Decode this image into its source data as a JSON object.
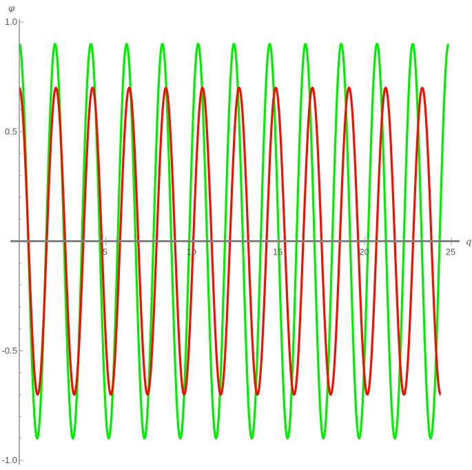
{
  "chart_data": {
    "type": "line",
    "xlabel": "q",
    "ylabel": "φ",
    "xlim": [
      0,
      25
    ],
    "ylim": [
      -1.0,
      1.0
    ],
    "x_ticks": [
      5,
      10,
      15,
      20,
      25
    ],
    "x_tick_labels": [
      "5",
      "10",
      "15",
      "20",
      "25"
    ],
    "y_ticks": [
      -1.0,
      -0.5,
      0.5,
      1.0
    ],
    "y_tick_labels": [
      "-1.0",
      "-0.5",
      "0.5",
      "1.0"
    ],
    "grid": false,
    "series": [
      {
        "color": "#00ee00",
        "amplitude": 0.9,
        "period": 2.07,
        "phase_shift": 0.0,
        "x": [
          0,
          1.035,
          2.07,
          3.105,
          4.14,
          5.175,
          6.21,
          7.245,
          8.28,
          9.315,
          10.35,
          11.385,
          12.42,
          13.455,
          14.49,
          15.525,
          16.56,
          17.595,
          18.63,
          19.665,
          20.7,
          21.735,
          22.77,
          23.805,
          24.84
        ],
        "y": [
          0.9,
          -0.9,
          0.9,
          -0.9,
          0.9,
          -0.9,
          0.9,
          -0.9,
          0.9,
          -0.9,
          0.9,
          -0.9,
          0.9,
          -0.9,
          0.9,
          -0.9,
          0.9,
          -0.9,
          0.9,
          -0.9,
          0.9,
          -0.9,
          0.9,
          -0.9,
          0.9
        ]
      },
      {
        "color": "#ee1100",
        "amplitude": 0.7,
        "period": 2.12,
        "phase_shift": 0.0,
        "x": [
          0,
          1.06,
          2.12,
          3.18,
          4.24,
          5.3,
          6.36,
          7.42,
          8.48,
          9.54,
          10.6,
          11.66,
          12.72,
          13.78,
          14.84,
          15.9,
          16.96,
          18.02,
          19.08,
          20.14,
          21.2,
          22.26,
          23.32,
          24.38
        ],
        "y": [
          0.7,
          -0.7,
          0.7,
          -0.7,
          0.7,
          -0.7,
          0.7,
          -0.7,
          0.7,
          -0.7,
          0.7,
          -0.7,
          0.7,
          -0.7,
          0.7,
          -0.7,
          0.7,
          -0.7,
          0.7,
          -0.7,
          0.7,
          -0.7,
          0.7,
          -0.7
        ]
      }
    ]
  },
  "colors": {
    "axis": "#808080",
    "tick": "#9a9a9a"
  }
}
